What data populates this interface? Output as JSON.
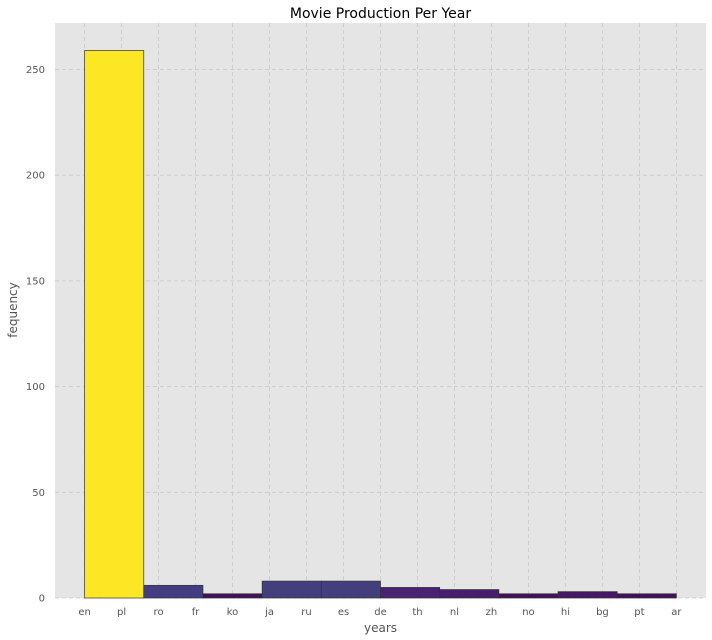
{
  "chart_data": {
    "type": "bar",
    "title": "Movie Production Per Year",
    "xlabel": "years",
    "ylabel": "fequency",
    "x_tick_labels": [
      "en",
      "pl",
      "ro",
      "fr",
      "ko",
      "ja",
      "ru",
      "es",
      "de",
      "th",
      "nl",
      "zh",
      "no",
      "hi",
      "bg",
      "pt",
      "ar"
    ],
    "bins": [
      {
        "start": 0,
        "end": 1.6,
        "value": 259,
        "color": "#fde725"
      },
      {
        "start": 1.6,
        "end": 3.2,
        "value": 6,
        "color": "#433d84"
      },
      {
        "start": 3.2,
        "end": 4.8,
        "value": 2,
        "color": "#440f56"
      },
      {
        "start": 4.8,
        "end": 6.4,
        "value": 8,
        "color": "#433e7c"
      },
      {
        "start": 6.4,
        "end": 8.0,
        "value": 8,
        "color": "#433e7c"
      },
      {
        "start": 8.0,
        "end": 9.6,
        "value": 5,
        "color": "#482374"
      },
      {
        "start": 9.6,
        "end": 11.2,
        "value": 4,
        "color": "#471d6e"
      },
      {
        "start": 11.2,
        "end": 12.8,
        "value": 2,
        "color": "#440f56"
      },
      {
        "start": 12.8,
        "end": 14.4,
        "value": 3,
        "color": "#461865"
      },
      {
        "start": 14.4,
        "end": 16.0,
        "value": 2,
        "color": "#440f56"
      }
    ],
    "y_ticks": [
      0,
      50,
      100,
      150,
      200,
      250
    ],
    "xlim": [
      -0.8,
      16.8
    ],
    "ylim": [
      0,
      272
    ],
    "grid": true
  }
}
